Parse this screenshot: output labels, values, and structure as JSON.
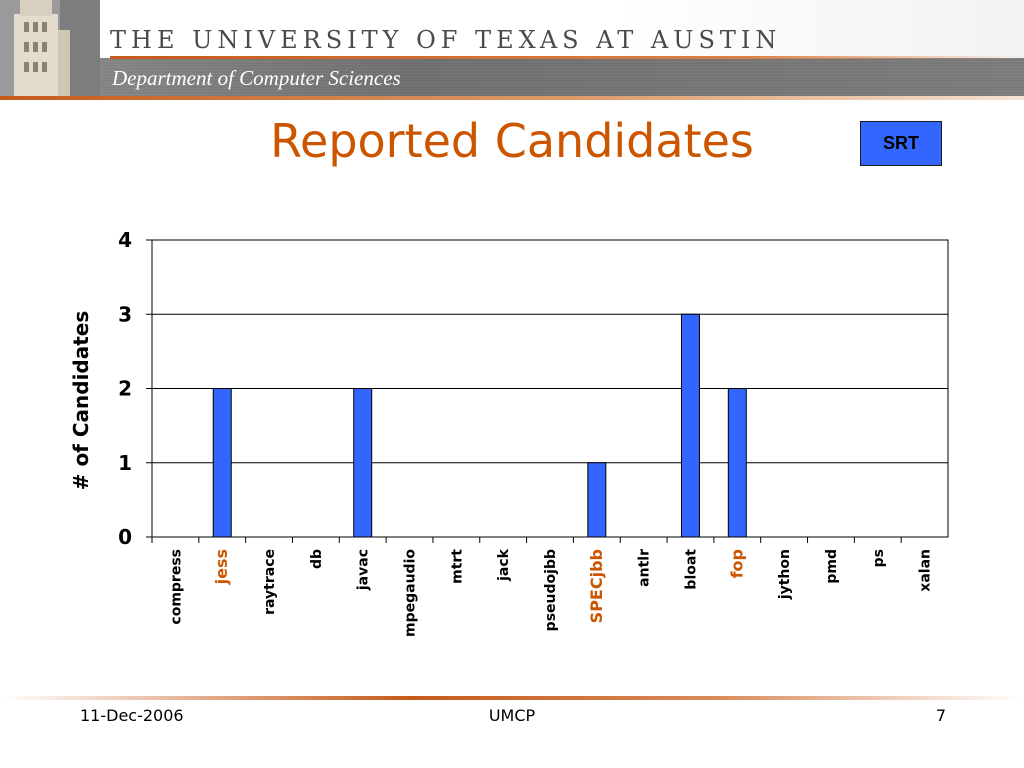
{
  "header": {
    "university": "THE UNIVERSITY OF TEXAS AT AUSTIN",
    "department": "Department of Computer Sciences"
  },
  "slide": {
    "title": "Reported Candidates",
    "badge": "SRT"
  },
  "colors": {
    "accent": "#cc5500",
    "bar": "#3366ff",
    "badge": "#3366ff"
  },
  "chart_data": {
    "type": "bar",
    "categories": [
      "compress",
      "jess",
      "raytrace",
      "db",
      "javac",
      "mpegaudio",
      "mtrt",
      "jack",
      "pseudojbb",
      "SPECjbb",
      "antlr",
      "bloat",
      "fop",
      "jython",
      "pmd",
      "ps",
      "xalan"
    ],
    "highlighted_categories": [
      "jess",
      "SPECjbb",
      "fop"
    ],
    "values": [
      0,
      2,
      0,
      0,
      2,
      0,
      0,
      0,
      0,
      1,
      0,
      3,
      2,
      0,
      0,
      0,
      0
    ],
    "ylabel": "# of Candidates",
    "ylim": [
      0,
      4
    ],
    "yticks": [
      0,
      1,
      2,
      3,
      4
    ],
    "grid": true
  },
  "footer": {
    "date": "11-Dec-2006",
    "center": "UMCP",
    "page": "7"
  }
}
